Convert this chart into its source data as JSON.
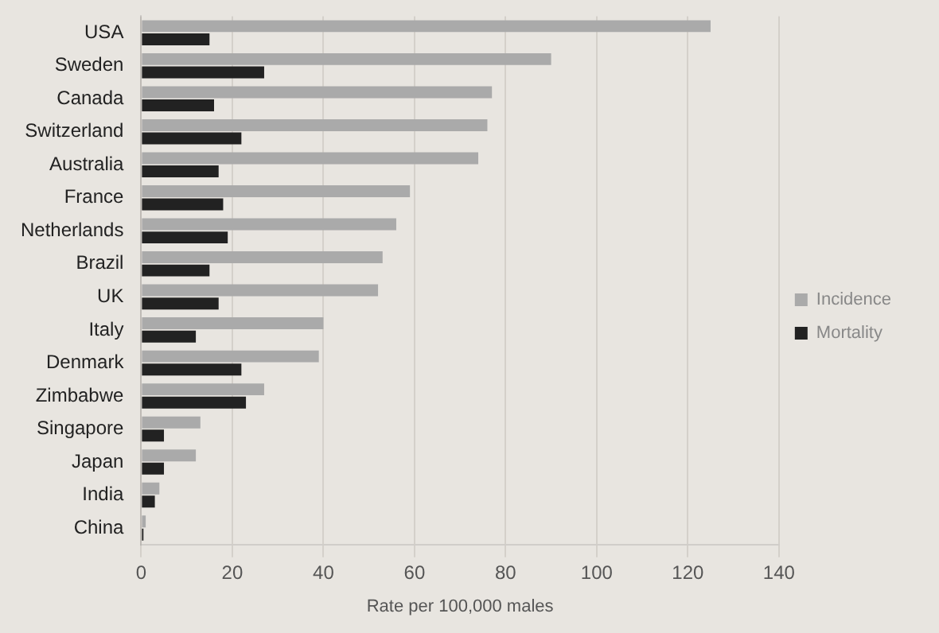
{
  "chart_data": {
    "type": "bar",
    "orientation": "horizontal",
    "xlabel": "Rate per 100,000 males",
    "categories": [
      "USA",
      "Sweden",
      "Canada",
      "Switzerland",
      "Australia",
      "France",
      "Netherlands",
      "Brazil",
      "UK",
      "Italy",
      "Denmark",
      "Zimbabwe",
      "Singapore",
      "Japan",
      "India",
      "China"
    ],
    "series": [
      {
        "name": "Incidence",
        "color": "#aaaaaa",
        "values": [
          125,
          90,
          77,
          76,
          74,
          59,
          56,
          53,
          52,
          40,
          39,
          27,
          13,
          12,
          4,
          1
        ]
      },
      {
        "name": "Mortality",
        "color": "#222222",
        "values": [
          15,
          27,
          16,
          22,
          17,
          18,
          19,
          15,
          17,
          12,
          22,
          23,
          5,
          5,
          3,
          0.5
        ]
      }
    ],
    "xlim": [
      0,
      140
    ],
    "xticks": [
      0,
      20,
      40,
      60,
      80,
      100,
      120,
      140
    ],
    "grid": "x",
    "legend": "right"
  }
}
